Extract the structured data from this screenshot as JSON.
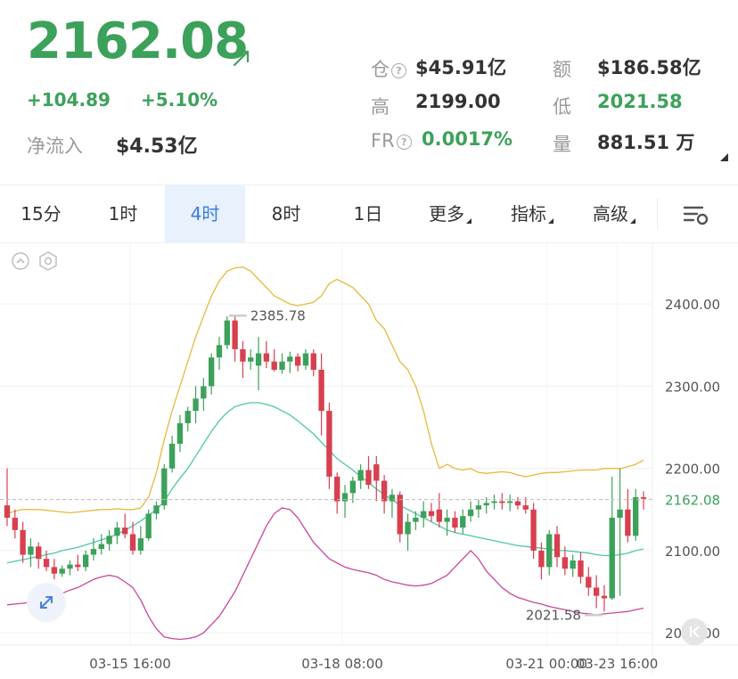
{
  "header": {
    "price": "2162.08",
    "change_abs": "+104.89",
    "change_pct": "+5.10%",
    "netflow_label": "净流入",
    "netflow_value": "$4.53亿",
    "stats": {
      "cang_label": "仓",
      "cang_value": "$45.91亿",
      "e_label": "额",
      "e_value": "$186.58亿",
      "high_label": "高",
      "high_value": "2199.00",
      "low_label": "低",
      "low_value": "2021.58",
      "fr_label": "FR",
      "fr_value": "0.0017%",
      "vol_label": "量",
      "vol_value": "881.51 万"
    }
  },
  "tabs": [
    {
      "label": "15分",
      "active": false
    },
    {
      "label": "1时",
      "active": false
    },
    {
      "label": "4时",
      "active": true
    },
    {
      "label": "8时",
      "active": false
    },
    {
      "label": "1日",
      "active": false
    },
    {
      "label": "更多",
      "active": false,
      "dropdown": true
    },
    {
      "label": "指标",
      "active": false,
      "dropdown": true
    },
    {
      "label": "高级",
      "active": false,
      "dropdown": true
    }
  ],
  "colors": {
    "up": "#3ca15a",
    "down": "#d7404f",
    "active_tab": "#3a7de0",
    "upper_band": "#e8b93c",
    "middle_band": "#4cc8a8",
    "lower_band": "#c9459a"
  },
  "chart_data": {
    "type": "candlestick",
    "y_ticks": [
      "2400.00",
      "2300.00",
      "2200.00",
      "2100.00",
      "2000.00"
    ],
    "ylim": [
      1985,
      2475
    ],
    "x_tick_labels": [
      "03-15 16:00",
      "03-18 08:00",
      "03-21 00:00",
      "03-23 16:00"
    ],
    "current_price_label": "2162.08",
    "max_annotation": "2385.78",
    "min_annotation": "2021.58",
    "candles": [
      [
        2155,
        2200,
        2130,
        2140
      ],
      [
        2140,
        2150,
        2115,
        2125
      ],
      [
        2125,
        2135,
        2085,
        2095
      ],
      [
        2095,
        2115,
        2080,
        2105
      ],
      [
        2105,
        2110,
        2078,
        2090
      ],
      [
        2090,
        2100,
        2075,
        2080
      ],
      [
        2080,
        2090,
        2065,
        2072
      ],
      [
        2072,
        2082,
        2068,
        2078
      ],
      [
        2078,
        2088,
        2070,
        2083
      ],
      [
        2083,
        2095,
        2075,
        2080
      ],
      [
        2080,
        2100,
        2075,
        2095
      ],
      [
        2095,
        2115,
        2088,
        2102
      ],
      [
        2102,
        2120,
        2095,
        2108
      ],
      [
        2108,
        2125,
        2100,
        2118
      ],
      [
        2118,
        2135,
        2108,
        2128
      ],
      [
        2128,
        2145,
        2115,
        2120
      ],
      [
        2120,
        2135,
        2095,
        2100
      ],
      [
        2100,
        2130,
        2095,
        2115
      ],
      [
        2115,
        2150,
        2112,
        2145
      ],
      [
        2145,
        2160,
        2138,
        2155
      ],
      [
        2155,
        2205,
        2150,
        2200
      ],
      [
        2200,
        2240,
        2195,
        2230
      ],
      [
        2230,
        2265,
        2220,
        2255
      ],
      [
        2255,
        2275,
        2245,
        2270
      ],
      [
        2270,
        2300,
        2255,
        2285
      ],
      [
        2285,
        2310,
        2270,
        2300
      ],
      [
        2300,
        2340,
        2290,
        2335
      ],
      [
        2335,
        2360,
        2320,
        2350
      ],
      [
        2350,
        2385,
        2345,
        2380
      ],
      [
        2380,
        2385,
        2330,
        2345
      ],
      [
        2345,
        2355,
        2310,
        2330
      ],
      [
        2330,
        2345,
        2320,
        2335
      ],
      [
        2325,
        2360,
        2295,
        2340
      ],
      [
        2340,
        2355,
        2322,
        2330
      ],
      [
        2330,
        2345,
        2318,
        2320
      ],
      [
        2320,
        2340,
        2315,
        2330
      ],
      [
        2330,
        2342,
        2316,
        2336
      ],
      [
        2336,
        2340,
        2318,
        2325
      ],
      [
        2325,
        2345,
        2320,
        2340
      ],
      [
        2340,
        2345,
        2312,
        2320
      ],
      [
        2320,
        2340,
        2240,
        2270
      ],
      [
        2270,
        2280,
        2175,
        2190
      ],
      [
        2190,
        2195,
        2145,
        2160
      ],
      [
        2160,
        2180,
        2140,
        2170
      ],
      [
        2170,
        2190,
        2158,
        2185
      ],
      [
        2185,
        2205,
        2175,
        2198
      ],
      [
        2198,
        2215,
        2175,
        2180
      ],
      [
        2205,
        2215,
        2160,
        2185
      ],
      [
        2185,
        2192,
        2145,
        2160
      ],
      [
        2160,
        2175,
        2140,
        2168
      ],
      [
        2168,
        2172,
        2110,
        2120
      ],
      [
        2120,
        2145,
        2100,
        2135
      ],
      [
        2135,
        2148,
        2125,
        2140
      ],
      [
        2140,
        2160,
        2128,
        2148
      ],
      [
        2148,
        2158,
        2135,
        2142
      ],
      [
        2150,
        2170,
        2128,
        2135
      ],
      [
        2135,
        2150,
        2118,
        2140
      ],
      [
        2140,
        2148,
        2122,
        2128
      ],
      [
        2128,
        2150,
        2120,
        2142
      ],
      [
        2142,
        2160,
        2135,
        2150
      ],
      [
        2150,
        2162,
        2140,
        2155
      ],
      [
        2155,
        2165,
        2145,
        2158
      ],
      [
        2158,
        2168,
        2150,
        2160
      ],
      [
        2160,
        2170,
        2150,
        2158
      ],
      [
        2158,
        2168,
        2148,
        2160
      ],
      [
        2160,
        2165,
        2150,
        2155
      ],
      [
        2155,
        2165,
        2145,
        2150
      ],
      [
        2150,
        2158,
        2090,
        2100
      ],
      [
        2100,
        2110,
        2065,
        2080
      ],
      [
        2080,
        2125,
        2070,
        2120
      ],
      [
        2120,
        2130,
        2080,
        2092
      ],
      [
        2092,
        2105,
        2070,
        2078
      ],
      [
        2078,
        2095,
        2068,
        2088
      ],
      [
        2088,
        2098,
        2060,
        2068
      ],
      [
        2068,
        2080,
        2045,
        2055
      ],
      [
        2055,
        2070,
        2030,
        2045
      ],
      [
        2045,
        2058,
        2026,
        2042
      ],
      [
        2042,
        2190,
        2040,
        2140
      ],
      [
        2140,
        2200,
        2045,
        2150
      ],
      [
        2150,
        2175,
        2110,
        2118
      ],
      [
        2118,
        2175,
        2112,
        2165
      ],
      [
        2165,
        2172,
        2150,
        2163
      ]
    ],
    "bollinger": {
      "upper": [
        2145,
        2148,
        2150,
        2150,
        2150,
        2149,
        2148,
        2147,
        2146,
        2147,
        2148,
        2149,
        2150,
        2150,
        2151,
        2150,
        2150,
        2152,
        2165,
        2195,
        2235,
        2270,
        2300,
        2330,
        2360,
        2385,
        2410,
        2428,
        2440,
        2444,
        2445,
        2440,
        2430,
        2420,
        2410,
        2405,
        2400,
        2398,
        2400,
        2402,
        2410,
        2425,
        2430,
        2425,
        2420,
        2410,
        2400,
        2380,
        2370,
        2350,
        2330,
        2320,
        2300,
        2270,
        2230,
        2200,
        2205,
        2200,
        2198,
        2200,
        2195,
        2194,
        2195,
        2196,
        2195,
        2192,
        2190,
        2192,
        2194,
        2195,
        2195,
        2196,
        2197,
        2198,
        2198,
        2198,
        2200,
        2200,
        2200,
        2202,
        2205,
        2210
      ],
      "middle": [
        2085,
        2087,
        2089,
        2091,
        2093,
        2095,
        2097,
        2100,
        2102,
        2104,
        2107,
        2110,
        2113,
        2116,
        2120,
        2125,
        2130,
        2136,
        2143,
        2150,
        2160,
        2175,
        2188,
        2200,
        2215,
        2230,
        2245,
        2258,
        2268,
        2275,
        2278,
        2280,
        2280,
        2278,
        2275,
        2270,
        2265,
        2258,
        2250,
        2242,
        2232,
        2222,
        2212,
        2205,
        2198,
        2190,
        2183,
        2175,
        2168,
        2162,
        2155,
        2150,
        2145,
        2140,
        2135,
        2130,
        2125,
        2122,
        2120,
        2118,
        2116,
        2114,
        2112,
        2110,
        2108,
        2106,
        2105,
        2104,
        2103,
        2102,
        2100,
        2100,
        2099,
        2098,
        2097,
        2095,
        2094,
        2094,
        2095,
        2097,
        2100,
        2102
      ],
      "lower": [
        2034,
        2035,
        2036,
        2037,
        2040,
        2042,
        2045,
        2048,
        2052,
        2055,
        2060,
        2065,
        2068,
        2070,
        2068,
        2062,
        2055,
        2040,
        2020,
        2005,
        1995,
        1993,
        1992,
        1993,
        1995,
        2000,
        2010,
        2020,
        2035,
        2050,
        2070,
        2090,
        2110,
        2130,
        2145,
        2152,
        2150,
        2140,
        2125,
        2110,
        2100,
        2090,
        2085,
        2080,
        2077,
        2075,
        2073,
        2070,
        2065,
        2062,
        2060,
        2058,
        2057,
        2058,
        2060,
        2065,
        2070,
        2080,
        2090,
        2100,
        2090,
        2075,
        2065,
        2055,
        2048,
        2043,
        2040,
        2037,
        2035,
        2032,
        2030,
        2028,
        2026,
        2024,
        2023,
        2022,
        2023,
        2024,
        2025,
        2026,
        2028,
        2030
      ]
    }
  }
}
